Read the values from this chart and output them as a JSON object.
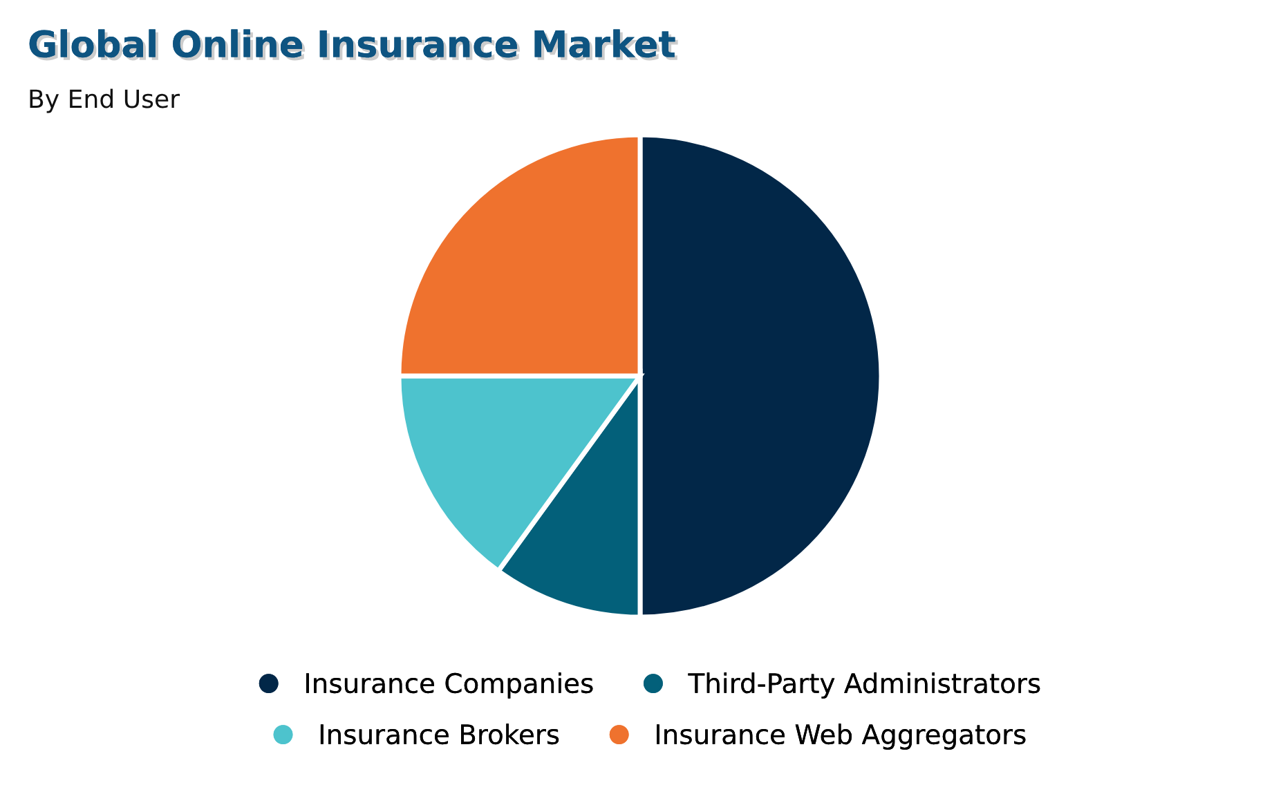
{
  "chart_data": {
    "type": "pie",
    "title": "Global Online Insurance Market",
    "subtitle": "By End User",
    "categories": [
      "Insurance Companies",
      "Third-Party Administrators",
      "Insurance Brokers",
      "Insurance Web Aggregators"
    ],
    "values": [
      50,
      10,
      15,
      25
    ],
    "colors": [
      "#022748",
      "#03607a",
      "#4dc3cd",
      "#ef722e"
    ],
    "legend": "bottom"
  }
}
